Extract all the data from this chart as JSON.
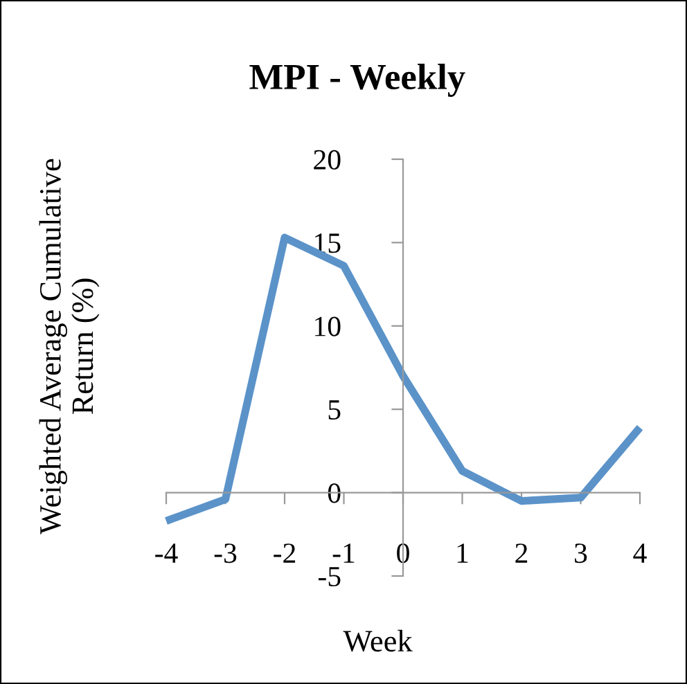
{
  "chart_data": {
    "type": "line",
    "title": "MPI - Weekly",
    "xlabel": "Week",
    "ylabel": "Weighted Average Cumulative\nReturn (%)",
    "x": [
      -4,
      -3,
      -2,
      -1,
      0,
      1,
      2,
      3,
      4
    ],
    "series": [
      {
        "color": "#5b93c9",
        "values": [
          -1.7,
          -0.4,
          15.3,
          13.6,
          7.0,
          1.3,
          -0.5,
          -0.3,
          3.9
        ]
      }
    ],
    "xlim": [
      -4,
      4
    ],
    "ylim": [
      -5,
      20
    ],
    "xticks": [
      -4,
      -3,
      -2,
      -1,
      0,
      1,
      2,
      3,
      4
    ],
    "yticks": [
      -5,
      0,
      5,
      10,
      15,
      20
    ],
    "grid": false,
    "legend": false,
    "marker": "none",
    "line_style": "solid"
  }
}
